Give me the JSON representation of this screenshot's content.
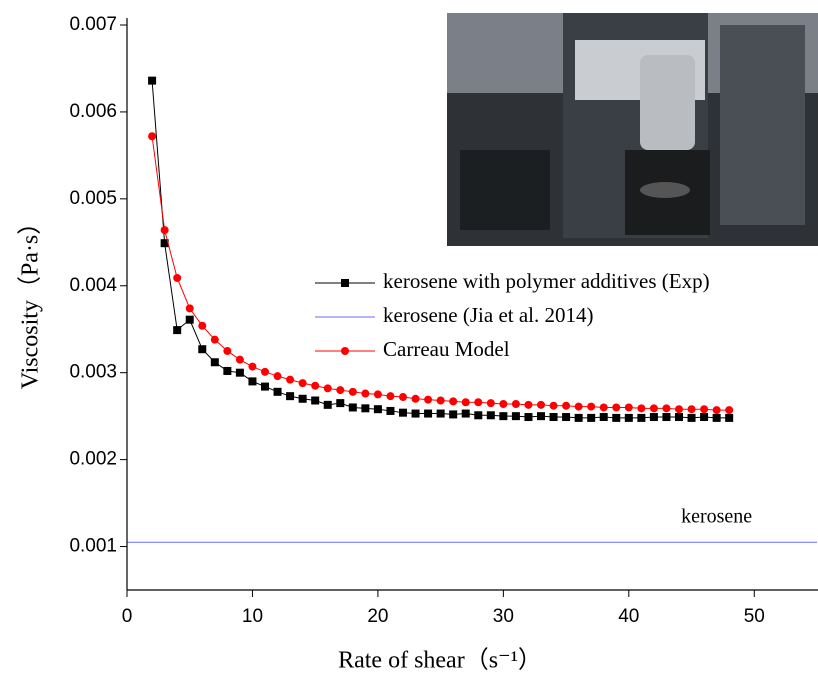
{
  "chart_data": {
    "type": "line",
    "xlabel": "Rate of shear（s⁻¹）",
    "ylabel": "Viscosity（Pa·s）",
    "xlim": [
      0,
      55
    ],
    "xticks": [
      0,
      10,
      20,
      30,
      40,
      50
    ],
    "ylim": [
      0.0005,
      0.007
    ],
    "yticks": [
      0.001,
      0.002,
      0.003,
      0.004,
      0.005,
      0.006,
      0.007
    ],
    "legend": "center-right",
    "annotations": [
      {
        "text": "kerosene",
        "x": 47,
        "y": 0.00133
      }
    ],
    "series": [
      {
        "name": "kerosene with polymer additives (Exp)",
        "color": "#000000",
        "marker": "square",
        "x": [
          2,
          3,
          4,
          5,
          6,
          7,
          8,
          9,
          10,
          11,
          12,
          13,
          14,
          15,
          16,
          17,
          18,
          19,
          20,
          21,
          22,
          23,
          24,
          25,
          26,
          27,
          28,
          29,
          30,
          31,
          32,
          33,
          34,
          35,
          36,
          37,
          38,
          39,
          40,
          41,
          42,
          43,
          44,
          45,
          46,
          47,
          48
        ],
        "values": [
          0.00636,
          0.00449,
          0.00349,
          0.00361,
          0.00327,
          0.00312,
          0.00302,
          0.003,
          0.0029,
          0.00284,
          0.00278,
          0.00273,
          0.0027,
          0.00268,
          0.00263,
          0.00265,
          0.0026,
          0.00259,
          0.00258,
          0.00256,
          0.00254,
          0.00253,
          0.00253,
          0.00253,
          0.00252,
          0.00253,
          0.00251,
          0.00251,
          0.0025,
          0.0025,
          0.00249,
          0.0025,
          0.00249,
          0.00249,
          0.00248,
          0.00248,
          0.00249,
          0.00248,
          0.00248,
          0.00248,
          0.00249,
          0.00249,
          0.00249,
          0.00248,
          0.00249,
          0.00248,
          0.00248
        ]
      },
      {
        "name": "kerosene (Jia et al. 2014)",
        "color": "#6b6bff",
        "marker": "none",
        "x": [
          0,
          55
        ],
        "values": [
          0.00105,
          0.00105
        ]
      },
      {
        "name": "Carreau Model",
        "color": "#ff0000",
        "marker": "circle",
        "x": [
          2,
          3,
          4,
          5,
          6,
          7,
          8,
          9,
          10,
          11,
          12,
          13,
          14,
          15,
          16,
          17,
          18,
          19,
          20,
          21,
          22,
          23,
          24,
          25,
          26,
          27,
          28,
          29,
          30,
          31,
          32,
          33,
          34,
          35,
          36,
          37,
          38,
          39,
          40,
          41,
          42,
          43,
          44,
          45,
          46,
          47,
          48
        ],
        "values": [
          0.00572,
          0.00464,
          0.00409,
          0.00374,
          0.00354,
          0.00338,
          0.00325,
          0.00315,
          0.00307,
          0.00301,
          0.00296,
          0.00292,
          0.00288,
          0.00285,
          0.00282,
          0.0028,
          0.00278,
          0.00276,
          0.00275,
          0.00273,
          0.00272,
          0.0027,
          0.00269,
          0.00268,
          0.00267,
          0.00266,
          0.00266,
          0.00265,
          0.00264,
          0.00264,
          0.00263,
          0.00263,
          0.00262,
          0.00262,
          0.00261,
          0.00261,
          0.0026,
          0.0026,
          0.0026,
          0.00259,
          0.00259,
          0.00259,
          0.00258,
          0.00258,
          0.00258,
          0.00257,
          0.00257
        ]
      }
    ]
  }
}
